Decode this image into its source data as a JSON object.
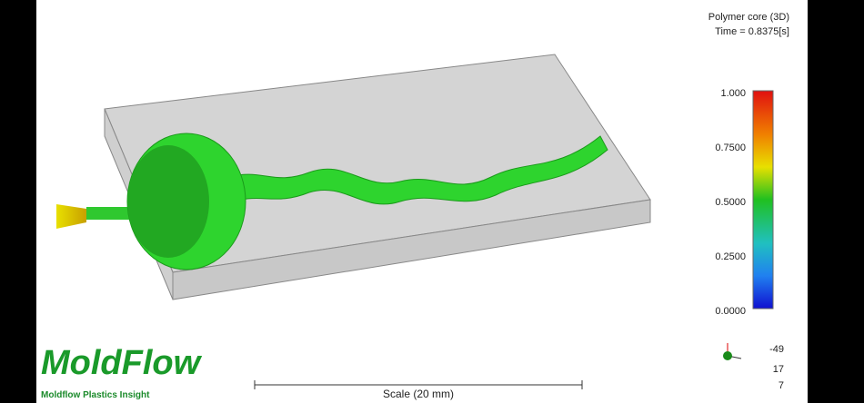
{
  "header": {
    "title": "Polymer core (3D)",
    "time": "Time = 0.8375[s]"
  },
  "colorbar": {
    "labels": [
      "1.000",
      "0.7500",
      "0.5000",
      "0.2500",
      "0.0000"
    ]
  },
  "view_angles": [
    "-49",
    "17",
    "7"
  ],
  "logo": {
    "name": "MoldFlow",
    "subtitle": "Moldflow Plastics Insight"
  },
  "scale": "Scale (20 mm)"
}
